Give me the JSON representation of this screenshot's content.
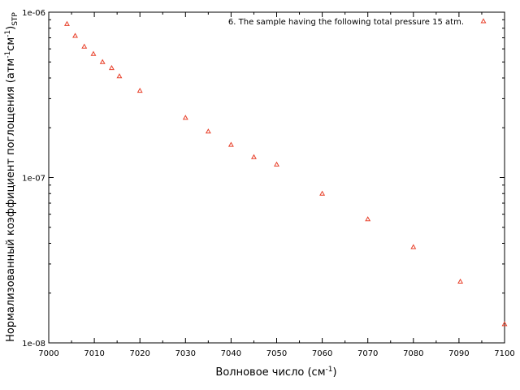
{
  "chart_data": {
    "type": "scatter",
    "xlabel": {
      "text": "Волновое число (см",
      "sup": "-1",
      "tail": ")"
    },
    "ylabel": {
      "text": "Нормализованный коэффициент поглощения (атм",
      "sup1": "-1",
      "mid": "см",
      "sup2": "-1",
      "close": ")",
      "sub": "STP"
    },
    "xlim": [
      7000,
      7100
    ],
    "ylim": [
      1e-08,
      1e-06
    ],
    "yscale": "log",
    "xticks": [
      7000,
      7010,
      7020,
      7030,
      7040,
      7050,
      7060,
      7070,
      7080,
      7090,
      7100
    ],
    "xtick_labels": [
      "7000",
      "7010",
      "7020",
      "7030",
      "7040",
      "7050",
      "7060",
      "7070",
      "7080",
      "7090",
      "7100"
    ],
    "yticks": [
      1e-08,
      1e-07,
      1e-06
    ],
    "ytick_labels": [
      "1e-08",
      "1e-07",
      "1e-06"
    ],
    "grid": false,
    "legend_position": "top-right",
    "series": [
      {
        "name": "6. The sample having the following total pressure 15 atm.",
        "color": "#e8402a",
        "marker": "triangle",
        "x": [
          7004,
          7005.8,
          7007.8,
          7009.8,
          7011.8,
          7013.8,
          7015.5,
          7020,
          7030,
          7035,
          7040,
          7045,
          7050,
          7060,
          7070,
          7080,
          7090.3,
          7100
        ],
        "y": [
          8.5e-07,
          7.2e-07,
          6.2e-07,
          5.6e-07,
          5e-07,
          4.6e-07,
          4.1e-07,
          3.35e-07,
          2.3e-07,
          1.9e-07,
          1.58e-07,
          1.33e-07,
          1.2e-07,
          8e-08,
          5.6e-08,
          3.8e-08,
          2.35e-08,
          1.3e-08
        ]
      }
    ]
  }
}
